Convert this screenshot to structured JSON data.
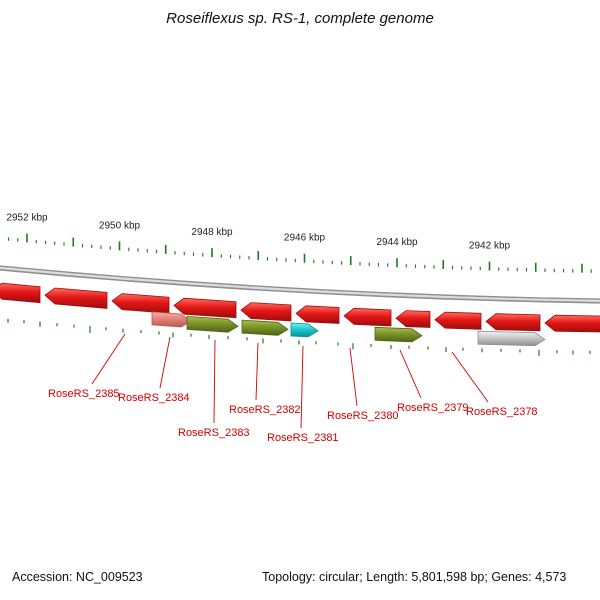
{
  "title": "Roseiflexus sp. RS-1, complete genome",
  "scale": {
    "labels": [
      "2952 kbp",
      "2950 kbp",
      "2948 kbp",
      "2946 kbp",
      "2944 kbp",
      "2942 kbp"
    ]
  },
  "genes": {
    "labels": [
      "RoseRS_2385",
      "RoseRS_2384",
      "RoseRS_2383",
      "RoseRS_2382",
      "RoseRS_2381",
      "RoseRS_2380",
      "RoseRS_2379",
      "RoseRS_2378"
    ]
  },
  "status_bar": {
    "accession": "Accession: NC_009523",
    "summary": "Topology: circular; Length: 5,801,598 bp; Genes: 4,573"
  },
  "colors": {
    "gene_red": {
      "light": "#ff6e5e",
      "base": "#e41717",
      "dark": "#9e0c0c"
    },
    "gene_olive": {
      "light": "#a9bf52",
      "base": "#7c9427",
      "dark": "#4f6318"
    },
    "gene_cyan": {
      "light": "#7df0f0",
      "base": "#1ecaca",
      "dark": "#0b8f96"
    },
    "gene_gray": {
      "light": "#f3f3f3",
      "base": "#c9c9c9",
      "dark": "#8f8f8f"
    },
    "gene_salmon": {
      "light": "#f6b0a8",
      "base": "#e4847c",
      "dark": "#b85850"
    },
    "tick_green": "#1e7a1e",
    "label_red": "#d40000",
    "backbone_gray": "#8f8f8f",
    "backbone_light": "#dcdcdc",
    "text_dark": "#1a1a1a"
  }
}
